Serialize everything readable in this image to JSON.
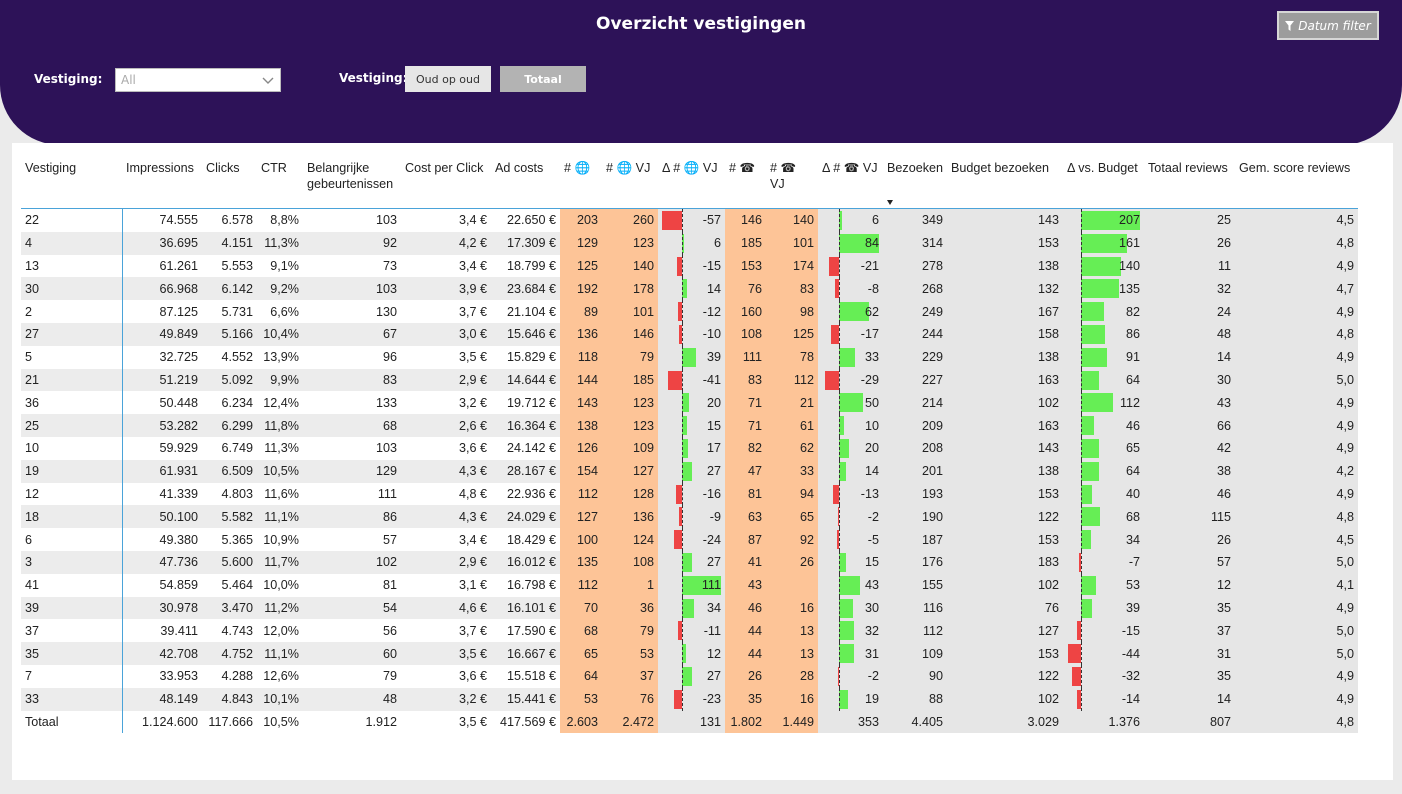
{
  "header": {
    "title": "Overzicht vestigingen",
    "datum_filter_label": "Datum filter",
    "filter_icon": "filter-icon",
    "vestiging_label": "Vestiging:",
    "dropdown_value": "All",
    "toggle_label": "Vestiging:",
    "toggle_options": [
      "Oud op oud",
      "Totaal"
    ],
    "toggle_selected": "Totaal"
  },
  "colors": {
    "header": "#2d1258",
    "peach": "#fdc497",
    "green_bar": "#66ee55",
    "red_bar": "#ee4444",
    "accent_line": "#4aa3d9"
  },
  "table": {
    "columns": [
      "Vestiging",
      "Impressions",
      "Clicks",
      "CTR",
      "Belangrijke gebeurtenissen",
      "Cost per Click",
      "Ad costs",
      "# 🌐",
      "# 🌐 VJ",
      "Δ # 🌐 VJ",
      "# ☎",
      "# ☎ VJ",
      "Δ # ☎ VJ",
      "Bezoeken",
      "Budget bezoeken",
      "Δ vs. Budget",
      "Totaal reviews",
      "Gem. score reviews"
    ],
    "sorted_column": "Bezoeken",
    "rows": [
      [
        "22",
        "74.555",
        "6.578",
        "8,8%",
        "103",
        "3,4 €",
        "22.650 €",
        "203",
        "260",
        "-57",
        "146",
        "140",
        "6",
        "349",
        "143",
        "207",
        "25",
        "4,5"
      ],
      [
        "4",
        "36.695",
        "4.151",
        "11,3%",
        "92",
        "4,2 €",
        "17.309 €",
        "129",
        "123",
        "6",
        "185",
        "101",
        "84",
        "314",
        "153",
        "161",
        "26",
        "4,8"
      ],
      [
        "13",
        "61.261",
        "5.553",
        "9,1%",
        "73",
        "3,4 €",
        "18.799 €",
        "125",
        "140",
        "-15",
        "153",
        "174",
        "-21",
        "278",
        "138",
        "140",
        "11",
        "4,9"
      ],
      [
        "30",
        "66.968",
        "6.142",
        "9,2%",
        "103",
        "3,9 €",
        "23.684 €",
        "192",
        "178",
        "14",
        "76",
        "83",
        "-8",
        "268",
        "132",
        "135",
        "32",
        "4,7"
      ],
      [
        "2",
        "87.125",
        "5.731",
        "6,6%",
        "130",
        "3,7 €",
        "21.104 €",
        "89",
        "101",
        "-12",
        "160",
        "98",
        "62",
        "249",
        "167",
        "82",
        "24",
        "4,9"
      ],
      [
        "27",
        "49.849",
        "5.166",
        "10,4%",
        "67",
        "3,0 €",
        "15.646 €",
        "136",
        "146",
        "-10",
        "108",
        "125",
        "-17",
        "244",
        "158",
        "86",
        "48",
        "4,8"
      ],
      [
        "5",
        "32.725",
        "4.552",
        "13,9%",
        "96",
        "3,5 €",
        "15.829 €",
        "118",
        "79",
        "39",
        "111",
        "78",
        "33",
        "229",
        "138",
        "91",
        "14",
        "4,9"
      ],
      [
        "21",
        "51.219",
        "5.092",
        "9,9%",
        "83",
        "2,9 €",
        "14.644 €",
        "144",
        "185",
        "-41",
        "83",
        "112",
        "-29",
        "227",
        "163",
        "64",
        "30",
        "5,0"
      ],
      [
        "36",
        "50.448",
        "6.234",
        "12,4%",
        "133",
        "3,2 €",
        "19.712 €",
        "143",
        "123",
        "20",
        "71",
        "21",
        "50",
        "214",
        "102",
        "112",
        "43",
        "4,9"
      ],
      [
        "25",
        "53.282",
        "6.299",
        "11,8%",
        "68",
        "2,6 €",
        "16.364 €",
        "138",
        "123",
        "15",
        "71",
        "61",
        "10",
        "209",
        "163",
        "46",
        "66",
        "4,9"
      ],
      [
        "10",
        "59.929",
        "6.749",
        "11,3%",
        "103",
        "3,6 €",
        "24.142 €",
        "126",
        "109",
        "17",
        "82",
        "62",
        "20",
        "208",
        "143",
        "65",
        "42",
        "4,9"
      ],
      [
        "19",
        "61.931",
        "6.509",
        "10,5%",
        "129",
        "4,3 €",
        "28.167 €",
        "154",
        "127",
        "27",
        "47",
        "33",
        "14",
        "201",
        "138",
        "64",
        "38",
        "4,2"
      ],
      [
        "12",
        "41.339",
        "4.803",
        "11,6%",
        "111",
        "4,8 €",
        "22.936 €",
        "112",
        "128",
        "-16",
        "81",
        "94",
        "-13",
        "193",
        "153",
        "40",
        "46",
        "4,9"
      ],
      [
        "18",
        "50.100",
        "5.582",
        "11,1%",
        "86",
        "4,3 €",
        "24.029 €",
        "127",
        "136",
        "-9",
        "63",
        "65",
        "-2",
        "190",
        "122",
        "68",
        "115",
        "4,8"
      ],
      [
        "6",
        "49.380",
        "5.365",
        "10,9%",
        "57",
        "3,4 €",
        "18.429 €",
        "100",
        "124",
        "-24",
        "87",
        "92",
        "-5",
        "187",
        "153",
        "34",
        "26",
        "4,5"
      ],
      [
        "3",
        "47.736",
        "5.600",
        "11,7%",
        "102",
        "2,9 €",
        "16.012 €",
        "135",
        "108",
        "27",
        "41",
        "26",
        "15",
        "176",
        "183",
        "-7",
        "57",
        "5,0"
      ],
      [
        "41",
        "54.859",
        "5.464",
        "10,0%",
        "81",
        "3,1 €",
        "16.798 €",
        "112",
        "1",
        "111",
        "43",
        "",
        "43",
        "155",
        "102",
        "53",
        "12",
        "4,1"
      ],
      [
        "39",
        "30.978",
        "3.470",
        "11,2%",
        "54",
        "4,6 €",
        "16.101 €",
        "70",
        "36",
        "34",
        "46",
        "16",
        "30",
        "116",
        "76",
        "39",
        "35",
        "4,9"
      ],
      [
        "37",
        "39.411",
        "4.743",
        "12,0%",
        "56",
        "3,7 €",
        "17.590 €",
        "68",
        "79",
        "-11",
        "44",
        "13",
        "32",
        "112",
        "127",
        "-15",
        "37",
        "5,0"
      ],
      [
        "35",
        "42.708",
        "4.752",
        "11,1%",
        "60",
        "3,5 €",
        "16.667 €",
        "65",
        "53",
        "12",
        "44",
        "13",
        "31",
        "109",
        "153",
        "-44",
        "31",
        "5,0"
      ],
      [
        "7",
        "33.953",
        "4.288",
        "12,6%",
        "79",
        "3,6 €",
        "15.518 €",
        "64",
        "37",
        "27",
        "26",
        "28",
        "-2",
        "90",
        "122",
        "-32",
        "35",
        "4,9"
      ],
      [
        "33",
        "48.149",
        "4.843",
        "10,1%",
        "48",
        "3,2 €",
        "15.441 €",
        "53",
        "76",
        "-23",
        "35",
        "16",
        "19",
        "88",
        "102",
        "-14",
        "14",
        "4,9"
      ]
    ],
    "total": [
      "Totaal",
      "1.124.600",
      "117.666",
      "10,5%",
      "1.912",
      "3,5 €",
      "417.569 €",
      "2.603",
      "2.472",
      "131",
      "1.802",
      "1.449",
      "353",
      "4.405",
      "3.029",
      "1.376",
      "807",
      "4,8"
    ]
  }
}
